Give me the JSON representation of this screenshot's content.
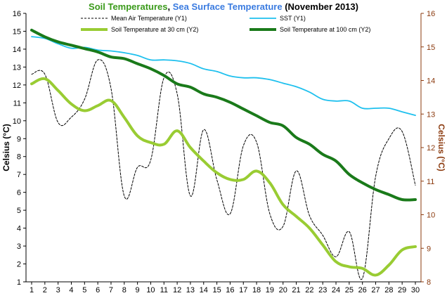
{
  "chart_data": {
    "type": "line",
    "title": {
      "segments": [
        {
          "text": "Soil Temperatures",
          "color": "#3a9a1a"
        },
        {
          "text": ", ",
          "color": "#000000"
        },
        {
          "text": "Sea Surface Temperature",
          "color": "#3a7be0"
        },
        {
          "text": " (November 2013)",
          "color": "#000000"
        }
      ]
    },
    "y1_label": "Celsius (°C)",
    "y2_label": "Celsius (°C)",
    "y1_color": "#000000",
    "y2_color": "#8b3a0e",
    "x": [
      1,
      2,
      3,
      4,
      5,
      6,
      7,
      8,
      9,
      10,
      11,
      12,
      13,
      14,
      15,
      16,
      17,
      18,
      19,
      20,
      21,
      22,
      23,
      24,
      25,
      26,
      27,
      28,
      29,
      30
    ],
    "y1lim": [
      1,
      16
    ],
    "y2lim": [
      8,
      16
    ],
    "y1_ticks": [
      1,
      2,
      3,
      4,
      5,
      6,
      7,
      8,
      9,
      10,
      11,
      12,
      13,
      14,
      15,
      16
    ],
    "y2_ticks": [
      8,
      9,
      10,
      11,
      12,
      13,
      14,
      15,
      16
    ],
    "grid": false,
    "series": [
      {
        "name": "Mean Air Temperature (Y1)",
        "axis": "y1",
        "color": "#000000",
        "dash": "3,2",
        "width": 1,
        "values": [
          12.6,
          12.6,
          9.9,
          10.2,
          11.2,
          13.4,
          11.8,
          5.8,
          7.4,
          7.8,
          12.4,
          11.5,
          5.8,
          9.5,
          6.7,
          4.8,
          8.6,
          8.8,
          4.8,
          4.1,
          7.2,
          4.7,
          3.6,
          2.4,
          3.8,
          1.2,
          6.9,
          9.0,
          9.4,
          6.4
        ]
      },
      {
        "name": "SST (Y1)",
        "axis": "y1",
        "color": "#1ec0ee",
        "dash": "",
        "width": 1.8,
        "values": [
          14.7,
          14.6,
          14.3,
          14.05,
          14.1,
          13.95,
          13.9,
          13.8,
          13.65,
          13.4,
          13.4,
          13.35,
          13.2,
          12.9,
          12.75,
          12.5,
          12.4,
          12.4,
          12.3,
          12.1,
          11.9,
          11.6,
          11.2,
          11.1,
          11.1,
          10.7,
          10.7,
          10.7,
          10.5,
          10.3
        ]
      },
      {
        "name": "Soil Temperature at 30 cm (Y2)",
        "axis": "y2",
        "color": "#99cc33",
        "dash": "",
        "width": 4,
        "values": [
          13.9,
          14.05,
          13.7,
          13.3,
          13.1,
          13.25,
          13.4,
          12.9,
          12.35,
          12.15,
          12.1,
          12.5,
          12.0,
          11.6,
          11.25,
          11.05,
          11.05,
          11.3,
          10.95,
          10.3,
          9.95,
          9.6,
          9.1,
          8.6,
          8.45,
          8.4,
          8.2,
          8.5,
          8.95,
          9.05
        ]
      },
      {
        "name": "Soil Temperature at 100 cm (Y2)",
        "axis": "y2",
        "color": "#1a7a1a",
        "dash": "",
        "width": 4,
        "values": [
          15.5,
          15.3,
          15.15,
          15.05,
          14.95,
          14.85,
          14.7,
          14.65,
          14.5,
          14.35,
          14.15,
          13.9,
          13.8,
          13.6,
          13.5,
          13.35,
          13.15,
          12.95,
          12.75,
          12.65,
          12.3,
          12.1,
          11.8,
          11.6,
          11.2,
          10.95,
          10.75,
          10.6,
          10.45,
          10.45
        ]
      }
    ]
  }
}
